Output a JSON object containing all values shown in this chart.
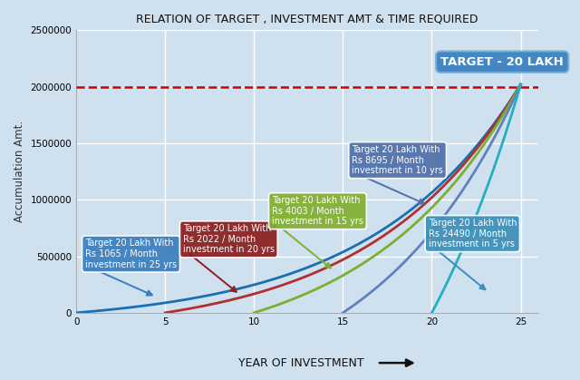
{
  "title": "RELATION OF TARGET , INVESTMENT AMT & TIME REQUIRED",
  "xlabel": "YEAR OF INVESTMENT",
  "ylabel": "Accumulation Amt.",
  "target_value": 2000000,
  "ylim": [
    0,
    2500000
  ],
  "xlim": [
    0,
    26
  ],
  "xticks": [
    0,
    5,
    10,
    15,
    20,
    25
  ],
  "yticks": [
    0,
    500000,
    1000000,
    1500000,
    2000000,
    2500000
  ],
  "background_color": "#cfe0ef",
  "grid_color": "#ffffff",
  "dashed_line_color": "#cc0000",
  "target_label": "TARGET - 20 LAKH",
  "curves": [
    {
      "years": 25,
      "monthly": 1065,
      "color": "#1a6faf",
      "label": "Target 20 Lakh With\nRs 1065 / Month\ninvestment in 25 yrs",
      "ann_x": 0.5,
      "ann_y": 520000,
      "arr_x": 4.5,
      "arr_y": 140000,
      "bg_color": "#3a7fbf"
    },
    {
      "years": 20,
      "monthly": 2022,
      "color": "#b03030",
      "label": "Target 20 Lakh With\nRs 2022 / Month\ninvestment in 20 yrs",
      "ann_x": 6.0,
      "ann_y": 650000,
      "arr_x": 9.2,
      "arr_y": 160000,
      "bg_color": "#8b2020"
    },
    {
      "years": 15,
      "monthly": 4003,
      "color": "#7ab030",
      "label": "Target 20 Lakh With\nRs 4003 / Month\ninvestment in 15 yrs",
      "ann_x": 11.0,
      "ann_y": 900000,
      "arr_x": 14.5,
      "arr_y": 370000,
      "bg_color": "#80b030"
    },
    {
      "years": 10,
      "monthly": 8695,
      "color": "#6080c0",
      "label": "Target 20 Lakh With\nRs 8695 / Month\ninvestment in 10 yrs",
      "ann_x": 15.5,
      "ann_y": 1350000,
      "arr_x": 19.8,
      "arr_y": 950000,
      "bg_color": "#5070a8"
    },
    {
      "years": 5,
      "monthly": 24490,
      "color": "#20b0c0",
      "label": "Target 20 Lakh With\nRs 24490 / Month\ninvestment in 5 yrs",
      "ann_x": 19.8,
      "ann_y": 700000,
      "arr_x": 23.2,
      "arr_y": 180000,
      "bg_color": "#3a90b8"
    }
  ],
  "annual_rate": 0.12,
  "annotation_text_color": "#ffffff",
  "annotation_fontsize": 7.0,
  "target_ann_x": 20.5,
  "target_ann_y": 2220000,
  "target_bg": "#3a80c0"
}
